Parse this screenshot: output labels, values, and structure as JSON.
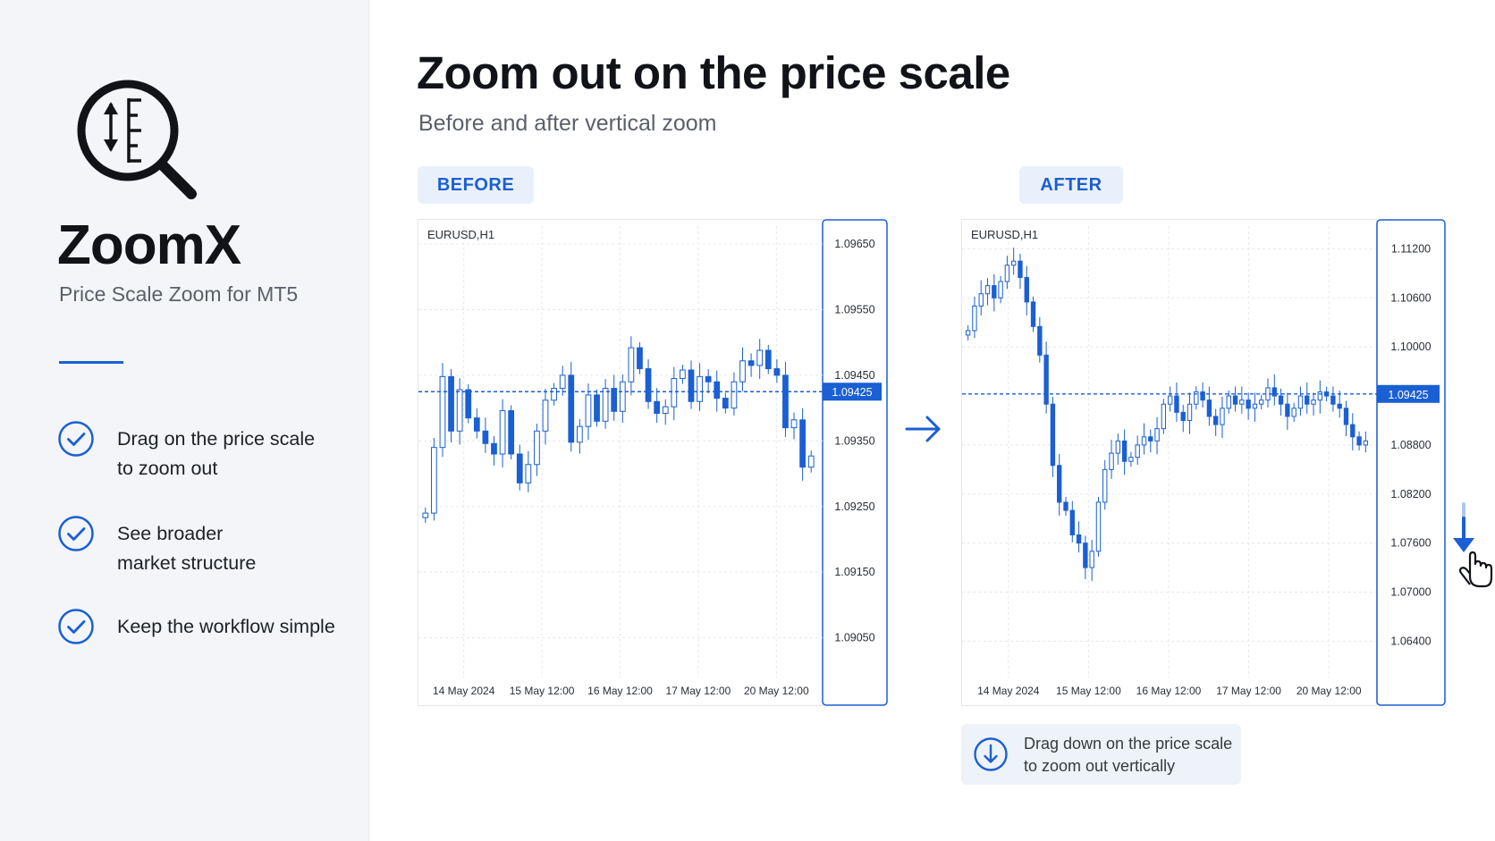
{
  "sidebar": {
    "logo_icon": "zoom-magnifier-price-scale-icon",
    "app_name": "ZoomX",
    "tagline": "Price Scale Zoom for MT5",
    "features": [
      {
        "icon": "check-circle-icon",
        "line1": "Drag on the price scale",
        "line2": "to zoom out"
      },
      {
        "icon": "check-circle-icon",
        "line1": "See broader",
        "line2": "market structure"
      },
      {
        "icon": "check-circle-icon",
        "line1": "Keep the workflow simple",
        "line2": ""
      }
    ]
  },
  "main": {
    "title": "Zoom out on the price scale",
    "subtitle": "Before and after vertical zoom",
    "before_label": "BEFORE",
    "after_label": "AFTER",
    "hint": {
      "icon": "arrow-down-circle-icon",
      "line1": "Drag down on the price scale",
      "line2": "to zoom out vertically"
    }
  },
  "colors": {
    "accent": "#1a5fd3",
    "candle_up": "#ffffff",
    "candle_down": "#1a5fd3",
    "wick": "#1a5fd3",
    "grid": "#e5e8ee"
  },
  "chart_data": [
    {
      "type": "candlestick",
      "symbol": "EURUSD,H1",
      "x_tick_labels": [
        "14 May 2024",
        "15 May 12:00",
        "16 May 12:00",
        "17 May 12:00",
        "20 May 12:00"
      ],
      "y_tick_labels": [
        "1.09650",
        "1.09550",
        "1.09450",
        "1.09350",
        "1.09250",
        "1.09150",
        "1.09050"
      ],
      "ylim": [
        1.08995,
        1.0968
      ],
      "current_price": 1.09425,
      "current_price_label": "1.09425",
      "grid": true,
      "closes": [
        1.0924,
        1.0934,
        1.09448,
        1.09365,
        1.09428,
        1.09385,
        1.09365,
        1.09346,
        1.0933,
        1.09396,
        1.0933,
        1.09286,
        1.09314,
        1.09365,
        1.09412,
        1.0943,
        1.0945,
        1.09348,
        1.09372,
        1.0942,
        1.0938,
        1.0943,
        1.09395,
        1.0944,
        1.09492,
        1.0946,
        1.0941,
        1.09392,
        1.09402,
        1.09445,
        1.09458,
        1.0941,
        1.09448,
        1.0944,
        1.09415,
        1.094,
        1.0944,
        1.09472,
        1.09465,
        1.09488,
        1.0946,
        1.0945,
        1.0937,
        1.09382,
        1.0931,
        1.09327
      ]
    },
    {
      "type": "candlestick",
      "symbol": "EURUSD,H1",
      "x_tick_labels": [
        "14 May 2024",
        "15 May 12:00",
        "16 May 12:00",
        "17 May 12:00",
        "20 May 12:00"
      ],
      "y_tick_labels": [
        "1.11200",
        "1.10600",
        "1.10000",
        "1.09425",
        "1.08800",
        "1.08200",
        "1.07600",
        "1.07000",
        "1.06400"
      ],
      "ylim": [
        1.06,
        1.115
      ],
      "current_price": 1.09425,
      "current_price_label": "1.09425",
      "grid": true,
      "closes": [
        1.102,
        1.105,
        1.1065,
        1.1075,
        1.106,
        1.108,
        1.11,
        1.1105,
        1.1085,
        1.1055,
        1.1025,
        1.099,
        1.093,
        1.0855,
        1.081,
        1.08,
        1.077,
        1.076,
        1.073,
        1.075,
        1.081,
        1.085,
        1.087,
        1.0885,
        1.086,
        1.0865,
        1.088,
        1.089,
        1.0885,
        1.09,
        1.093,
        1.094,
        1.092,
        1.091,
        1.093,
        1.0945,
        1.0935,
        1.0915,
        1.0905,
        1.0925,
        1.094,
        1.093,
        1.0935,
        1.0925,
        1.093,
        1.0935,
        1.095,
        1.094,
        1.093,
        1.0915,
        1.0925,
        1.094,
        1.093,
        1.0935,
        1.0945,
        1.094,
        1.093,
        1.0925,
        1.0905,
        1.089,
        1.088,
        1.0885
      ]
    }
  ]
}
